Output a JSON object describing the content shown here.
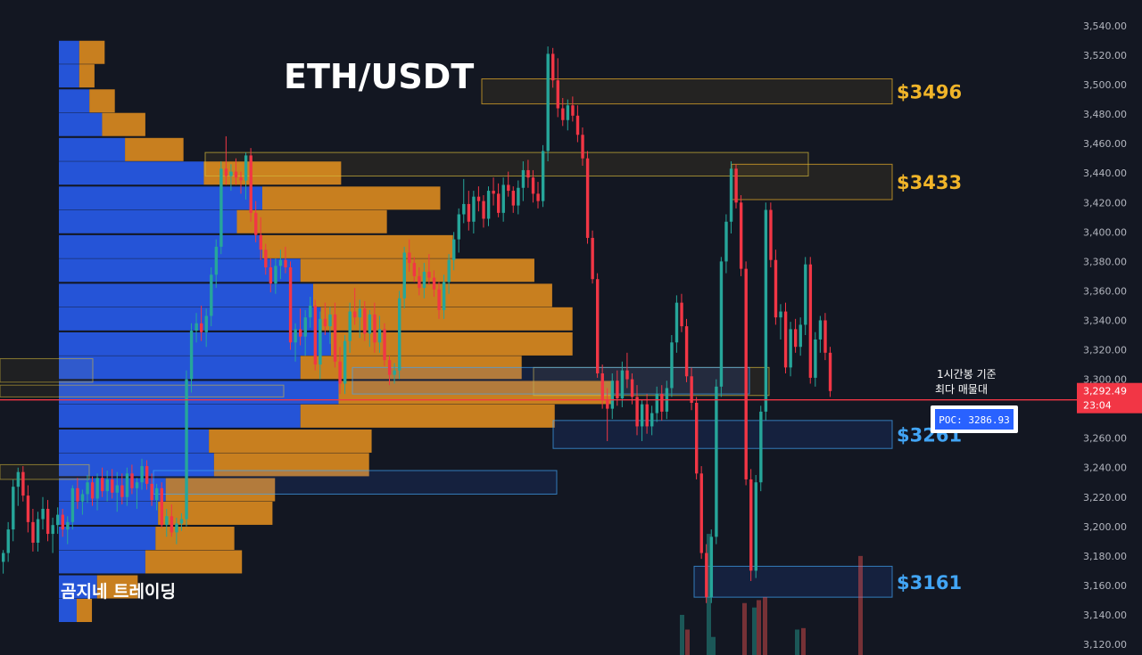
{
  "chart_data": {
    "type": "candlestick",
    "title": "ETH/USDT",
    "watermark": "곰지네 트레이딩",
    "y_axis": {
      "ticks": [
        "3,120.00",
        "3,140.00",
        "3,160.00",
        "3,180.00",
        "3,200.00",
        "3,220.00",
        "3,240.00",
        "3,260.00",
        "3,280.00",
        "3,300.00",
        "3,320.00",
        "3,340.00",
        "3,360.00",
        "3,380.00",
        "3,400.00",
        "3,420.00",
        "3,440.00",
        "3,460.00",
        "3,480.00",
        "3,500.00",
        "3,520.00",
        "3,540.00"
      ],
      "range": [
        3113,
        3555
      ]
    },
    "current_price": {
      "value": "3,292.49",
      "countdown": "23:04",
      "level": 3286,
      "color": "#f23645"
    },
    "annotation": {
      "line1": "1시간봉 기준",
      "line2": "최다 매물대"
    },
    "poc": {
      "label": "POC: 3286.93",
      "value": 3286.93
    },
    "zones": [
      {
        "label": "$3496",
        "low": 3487,
        "high": 3504,
        "color": "#f0b429",
        "kind": "resistance"
      },
      {
        "label": "$3433",
        "low": 3422,
        "high": 3446,
        "color": "#f0b429",
        "kind": "resistance"
      },
      {
        "label": "",
        "low": 3438,
        "high": 3454,
        "color": "#d4b83a",
        "kind": "resistance"
      },
      {
        "label": "",
        "low": 3289,
        "high": 3308,
        "color": "#d4b83a",
        "kind": "resistance"
      },
      {
        "label": "$3261",
        "low": 3253,
        "high": 3272,
        "color": "#42a5f5",
        "kind": "support"
      },
      {
        "label": "",
        "low": 3290,
        "high": 3308,
        "color": "#42a5f5",
        "kind": "support"
      },
      {
        "label": "",
        "low": 3222,
        "high": 3238,
        "color": "#42a5f5",
        "kind": "support"
      },
      {
        "label": "$3161",
        "low": 3152,
        "high": 3173,
        "color": "#42a5f5",
        "kind": "support"
      }
    ],
    "volume_profile": {
      "up_color": "#2962ff",
      "down_color": "#f0961e",
      "rows": [
        {
          "price": 3522,
          "up": 0.008,
          "down": 0.01
        },
        {
          "price": 3506,
          "up": 0.008,
          "down": 0.006
        },
        {
          "price": 3489,
          "up": 0.012,
          "down": 0.01
        },
        {
          "price": 3473,
          "up": 0.017,
          "down": 0.017
        },
        {
          "price": 3456,
          "up": 0.026,
          "down": 0.023
        },
        {
          "price": 3440,
          "up": 0.057,
          "down": 0.054
        },
        {
          "price": 3423,
          "up": 0.08,
          "down": 0.07
        },
        {
          "price": 3407,
          "up": 0.07,
          "down": 0.059
        },
        {
          "price": 3390,
          "up": 0.08,
          "down": 0.075
        },
        {
          "price": 3374,
          "up": 0.095,
          "down": 0.092
        },
        {
          "price": 3357,
          "up": 0.1,
          "down": 0.094
        },
        {
          "price": 3341,
          "up": 0.103,
          "down": 0.099
        },
        {
          "price": 3324,
          "up": 0.107,
          "down": 0.095
        },
        {
          "price": 3308,
          "up": 0.095,
          "down": 0.087
        },
        {
          "price": 3291,
          "up": 0.11,
          "down": 0.108
        },
        {
          "price": 3275,
          "up": 0.095,
          "down": 0.1
        },
        {
          "price": 3258,
          "up": 0.059,
          "down": 0.064
        },
        {
          "price": 3242,
          "up": 0.061,
          "down": 0.061
        },
        {
          "price": 3225,
          "up": 0.042,
          "down": 0.043
        },
        {
          "price": 3209,
          "up": 0.039,
          "down": 0.045
        },
        {
          "price": 3192,
          "up": 0.038,
          "down": 0.031
        },
        {
          "price": 3176,
          "up": 0.034,
          "down": 0.038
        },
        {
          "price": 3159,
          "up": 0.015,
          "down": 0.016
        },
        {
          "price": 3143,
          "up": 0.007,
          "down": 0.006
        }
      ]
    },
    "candles": [
      {
        "o": 3176,
        "h": 3184,
        "l": 3168,
        "c": 3182
      },
      {
        "o": 3182,
        "h": 3203,
        "l": 3176,
        "c": 3198
      },
      {
        "o": 3198,
        "h": 3232,
        "l": 3190,
        "c": 3227
      },
      {
        "o": 3227,
        "h": 3240,
        "l": 3214,
        "c": 3237
      },
      {
        "o": 3237,
        "h": 3241,
        "l": 3217,
        "c": 3221
      },
      {
        "o": 3221,
        "h": 3228,
        "l": 3196,
        "c": 3203
      },
      {
        "o": 3203,
        "h": 3212,
        "l": 3183,
        "c": 3189
      },
      {
        "o": 3189,
        "h": 3210,
        "l": 3183,
        "c": 3205
      },
      {
        "o": 3205,
        "h": 3220,
        "l": 3198,
        "c": 3212
      },
      {
        "o": 3212,
        "h": 3218,
        "l": 3190,
        "c": 3195
      },
      {
        "o": 3195,
        "h": 3206,
        "l": 3182,
        "c": 3201
      },
      {
        "o": 3201,
        "h": 3213,
        "l": 3195,
        "c": 3208
      },
      {
        "o": 3208,
        "h": 3212,
        "l": 3193,
        "c": 3198
      },
      {
        "o": 3198,
        "h": 3207,
        "l": 3188,
        "c": 3203
      },
      {
        "o": 3203,
        "h": 3228,
        "l": 3198,
        "c": 3226
      },
      {
        "o": 3226,
        "h": 3233,
        "l": 3212,
        "c": 3217
      },
      {
        "o": 3217,
        "h": 3225,
        "l": 3208,
        "c": 3222
      },
      {
        "o": 3222,
        "h": 3235,
        "l": 3216,
        "c": 3230
      },
      {
        "o": 3230,
        "h": 3234,
        "l": 3214,
        "c": 3219
      },
      {
        "o": 3219,
        "h": 3236,
        "l": 3211,
        "c": 3233
      },
      {
        "o": 3233,
        "h": 3240,
        "l": 3220,
        "c": 3224
      },
      {
        "o": 3224,
        "h": 3238,
        "l": 3217,
        "c": 3232
      },
      {
        "o": 3232,
        "h": 3239,
        "l": 3219,
        "c": 3223
      },
      {
        "o": 3223,
        "h": 3237,
        "l": 3210,
        "c": 3228
      },
      {
        "o": 3228,
        "h": 3236,
        "l": 3215,
        "c": 3220
      },
      {
        "o": 3220,
        "h": 3240,
        "l": 3214,
        "c": 3236
      },
      {
        "o": 3236,
        "h": 3242,
        "l": 3222,
        "c": 3226
      },
      {
        "o": 3226,
        "h": 3233,
        "l": 3212,
        "c": 3230
      },
      {
        "o": 3230,
        "h": 3246,
        "l": 3225,
        "c": 3241
      },
      {
        "o": 3241,
        "h": 3245,
        "l": 3225,
        "c": 3229
      },
      {
        "o": 3229,
        "h": 3236,
        "l": 3214,
        "c": 3218
      },
      {
        "o": 3218,
        "h": 3229,
        "l": 3211,
        "c": 3226
      },
      {
        "o": 3226,
        "h": 3230,
        "l": 3199,
        "c": 3201
      },
      {
        "o": 3201,
        "h": 3212,
        "l": 3193,
        "c": 3207
      },
      {
        "o": 3207,
        "h": 3215,
        "l": 3193,
        "c": 3196
      },
      {
        "o": 3196,
        "h": 3206,
        "l": 3188,
        "c": 3202
      },
      {
        "o": 3202,
        "h": 3209,
        "l": 3197,
        "c": 3205
      },
      {
        "o": 3205,
        "h": 3306,
        "l": 3200,
        "c": 3300
      },
      {
        "o": 3300,
        "h": 3338,
        "l": 3291,
        "c": 3333
      },
      {
        "o": 3333,
        "h": 3345,
        "l": 3325,
        "c": 3338
      },
      {
        "o": 3338,
        "h": 3350,
        "l": 3326,
        "c": 3332
      },
      {
        "o": 3332,
        "h": 3348,
        "l": 3322,
        "c": 3343
      },
      {
        "o": 3343,
        "h": 3376,
        "l": 3336,
        "c": 3371
      },
      {
        "o": 3371,
        "h": 3395,
        "l": 3362,
        "c": 3390
      },
      {
        "o": 3390,
        "h": 3448,
        "l": 3385,
        "c": 3443
      },
      {
        "o": 3443,
        "h": 3465,
        "l": 3432,
        "c": 3438
      },
      {
        "o": 3438,
        "h": 3446,
        "l": 3428,
        "c": 3441
      },
      {
        "o": 3441,
        "h": 3450,
        "l": 3432,
        "c": 3437
      },
      {
        "o": 3437,
        "h": 3441,
        "l": 3426,
        "c": 3435
      },
      {
        "o": 3435,
        "h": 3454,
        "l": 3422,
        "c": 3452
      },
      {
        "o": 3452,
        "h": 3457,
        "l": 3407,
        "c": 3413
      },
      {
        "o": 3413,
        "h": 3421,
        "l": 3393,
        "c": 3398
      },
      {
        "o": 3398,
        "h": 3410,
        "l": 3381,
        "c": 3388
      },
      {
        "o": 3388,
        "h": 3392,
        "l": 3371,
        "c": 3376
      },
      {
        "o": 3376,
        "h": 3382,
        "l": 3359,
        "c": 3365
      },
      {
        "o": 3365,
        "h": 3382,
        "l": 3358,
        "c": 3377
      },
      {
        "o": 3377,
        "h": 3388,
        "l": 3368,
        "c": 3381
      },
      {
        "o": 3381,
        "h": 3390,
        "l": 3372,
        "c": 3376
      },
      {
        "o": 3376,
        "h": 3380,
        "l": 3320,
        "c": 3325
      },
      {
        "o": 3325,
        "h": 3338,
        "l": 3312,
        "c": 3334
      },
      {
        "o": 3334,
        "h": 3348,
        "l": 3323,
        "c": 3329
      },
      {
        "o": 3329,
        "h": 3347,
        "l": 3316,
        "c": 3342
      },
      {
        "o": 3342,
        "h": 3356,
        "l": 3335,
        "c": 3350
      },
      {
        "o": 3350,
        "h": 3354,
        "l": 3306,
        "c": 3310
      },
      {
        "o": 3310,
        "h": 3346,
        "l": 3300,
        "c": 3341
      },
      {
        "o": 3341,
        "h": 3352,
        "l": 3330,
        "c": 3336
      },
      {
        "o": 3336,
        "h": 3349,
        "l": 3324,
        "c": 3344
      },
      {
        "o": 3344,
        "h": 3352,
        "l": 3308,
        "c": 3312
      },
      {
        "o": 3312,
        "h": 3322,
        "l": 3290,
        "c": 3297
      },
      {
        "o": 3297,
        "h": 3330,
        "l": 3290,
        "c": 3326
      },
      {
        "o": 3326,
        "h": 3352,
        "l": 3318,
        "c": 3346
      },
      {
        "o": 3346,
        "h": 3362,
        "l": 3337,
        "c": 3342
      },
      {
        "o": 3342,
        "h": 3354,
        "l": 3328,
        "c": 3348
      },
      {
        "o": 3348,
        "h": 3353,
        "l": 3326,
        "c": 3331
      },
      {
        "o": 3331,
        "h": 3347,
        "l": 3322,
        "c": 3344
      },
      {
        "o": 3344,
        "h": 3352,
        "l": 3318,
        "c": 3325
      },
      {
        "o": 3325,
        "h": 3343,
        "l": 3318,
        "c": 3334
      },
      {
        "o": 3334,
        "h": 3338,
        "l": 3309,
        "c": 3313
      },
      {
        "o": 3313,
        "h": 3316,
        "l": 3296,
        "c": 3303
      },
      {
        "o": 3303,
        "h": 3311,
        "l": 3297,
        "c": 3306
      },
      {
        "o": 3306,
        "h": 3360,
        "l": 3300,
        "c": 3355
      },
      {
        "o": 3355,
        "h": 3390,
        "l": 3348,
        "c": 3386
      },
      {
        "o": 3386,
        "h": 3395,
        "l": 3373,
        "c": 3379
      },
      {
        "o": 3379,
        "h": 3383,
        "l": 3366,
        "c": 3370
      },
      {
        "o": 3370,
        "h": 3376,
        "l": 3357,
        "c": 3362
      },
      {
        "o": 3362,
        "h": 3379,
        "l": 3355,
        "c": 3373
      },
      {
        "o": 3373,
        "h": 3385,
        "l": 3364,
        "c": 3369
      },
      {
        "o": 3369,
        "h": 3374,
        "l": 3356,
        "c": 3361
      },
      {
        "o": 3361,
        "h": 3366,
        "l": 3341,
        "c": 3347
      },
      {
        "o": 3347,
        "h": 3371,
        "l": 3341,
        "c": 3366
      },
      {
        "o": 3366,
        "h": 3385,
        "l": 3358,
        "c": 3381
      },
      {
        "o": 3381,
        "h": 3400,
        "l": 3374,
        "c": 3395
      },
      {
        "o": 3395,
        "h": 3416,
        "l": 3386,
        "c": 3412
      },
      {
        "o": 3412,
        "h": 3436,
        "l": 3406,
        "c": 3419
      },
      {
        "o": 3419,
        "h": 3428,
        "l": 3401,
        "c": 3407
      },
      {
        "o": 3407,
        "h": 3428,
        "l": 3399,
        "c": 3424
      },
      {
        "o": 3424,
        "h": 3431,
        "l": 3414,
        "c": 3421
      },
      {
        "o": 3421,
        "h": 3425,
        "l": 3403,
        "c": 3409
      },
      {
        "o": 3409,
        "h": 3431,
        "l": 3404,
        "c": 3428
      },
      {
        "o": 3428,
        "h": 3437,
        "l": 3418,
        "c": 3426
      },
      {
        "o": 3426,
        "h": 3433,
        "l": 3410,
        "c": 3413
      },
      {
        "o": 3413,
        "h": 3437,
        "l": 3407,
        "c": 3432
      },
      {
        "o": 3432,
        "h": 3441,
        "l": 3424,
        "c": 3428
      },
      {
        "o": 3428,
        "h": 3431,
        "l": 3413,
        "c": 3418
      },
      {
        "o": 3418,
        "h": 3435,
        "l": 3412,
        "c": 3430
      },
      {
        "o": 3430,
        "h": 3448,
        "l": 3421,
        "c": 3442
      },
      {
        "o": 3442,
        "h": 3449,
        "l": 3430,
        "c": 3437
      },
      {
        "o": 3437,
        "h": 3442,
        "l": 3420,
        "c": 3426
      },
      {
        "o": 3426,
        "h": 3434,
        "l": 3416,
        "c": 3421
      },
      {
        "o": 3421,
        "h": 3459,
        "l": 3417,
        "c": 3455
      },
      {
        "o": 3455,
        "h": 3526,
        "l": 3448,
        "c": 3521
      },
      {
        "o": 3521,
        "h": 3525,
        "l": 3498,
        "c": 3503
      },
      {
        "o": 3503,
        "h": 3518,
        "l": 3478,
        "c": 3484
      },
      {
        "o": 3484,
        "h": 3491,
        "l": 3472,
        "c": 3476
      },
      {
        "o": 3476,
        "h": 3490,
        "l": 3469,
        "c": 3486
      },
      {
        "o": 3486,
        "h": 3492,
        "l": 3475,
        "c": 3479
      },
      {
        "o": 3479,
        "h": 3486,
        "l": 3461,
        "c": 3466
      },
      {
        "o": 3466,
        "h": 3471,
        "l": 3445,
        "c": 3450
      },
      {
        "o": 3450,
        "h": 3455,
        "l": 3392,
        "c": 3396
      },
      {
        "o": 3396,
        "h": 3401,
        "l": 3365,
        "c": 3368
      },
      {
        "o": 3368,
        "h": 3372,
        "l": 3301,
        "c": 3304
      },
      {
        "o": 3304,
        "h": 3310,
        "l": 3280,
        "c": 3286
      },
      {
        "o": 3286,
        "h": 3294,
        "l": 3258,
        "c": 3280
      },
      {
        "o": 3280,
        "h": 3304,
        "l": 3273,
        "c": 3299
      },
      {
        "o": 3299,
        "h": 3306,
        "l": 3282,
        "c": 3287
      },
      {
        "o": 3287,
        "h": 3312,
        "l": 3281,
        "c": 3306
      },
      {
        "o": 3306,
        "h": 3318,
        "l": 3294,
        "c": 3300
      },
      {
        "o": 3300,
        "h": 3304,
        "l": 3283,
        "c": 3288
      },
      {
        "o": 3288,
        "h": 3296,
        "l": 3262,
        "c": 3268
      },
      {
        "o": 3268,
        "h": 3286,
        "l": 3258,
        "c": 3283
      },
      {
        "o": 3283,
        "h": 3290,
        "l": 3263,
        "c": 3268
      },
      {
        "o": 3268,
        "h": 3282,
        "l": 3262,
        "c": 3277
      },
      {
        "o": 3277,
        "h": 3295,
        "l": 3271,
        "c": 3290
      },
      {
        "o": 3290,
        "h": 3296,
        "l": 3272,
        "c": 3278
      },
      {
        "o": 3278,
        "h": 3299,
        "l": 3273,
        "c": 3294
      },
      {
        "o": 3294,
        "h": 3330,
        "l": 3288,
        "c": 3325
      },
      {
        "o": 3325,
        "h": 3357,
        "l": 3318,
        "c": 3352
      },
      {
        "o": 3352,
        "h": 3358,
        "l": 3332,
        "c": 3336
      },
      {
        "o": 3336,
        "h": 3341,
        "l": 3298,
        "c": 3302
      },
      {
        "o": 3302,
        "h": 3308,
        "l": 3279,
        "c": 3284
      },
      {
        "o": 3284,
        "h": 3288,
        "l": 3232,
        "c": 3236
      },
      {
        "o": 3236,
        "h": 3241,
        "l": 3178,
        "c": 3182
      },
      {
        "o": 3182,
        "h": 3188,
        "l": 3148,
        "c": 3152
      },
      {
        "o": 3152,
        "h": 3198,
        "l": 3148,
        "c": 3193
      },
      {
        "o": 3193,
        "h": 3300,
        "l": 3188,
        "c": 3295
      },
      {
        "o": 3295,
        "h": 3383,
        "l": 3288,
        "c": 3380
      },
      {
        "o": 3380,
        "h": 3412,
        "l": 3372,
        "c": 3407
      },
      {
        "o": 3407,
        "h": 3448,
        "l": 3399,
        "c": 3443
      },
      {
        "o": 3443,
        "h": 3446,
        "l": 3416,
        "c": 3420
      },
      {
        "o": 3420,
        "h": 3425,
        "l": 3370,
        "c": 3375
      },
      {
        "o": 3375,
        "h": 3380,
        "l": 3228,
        "c": 3232
      },
      {
        "o": 3232,
        "h": 3239,
        "l": 3163,
        "c": 3170
      },
      {
        "o": 3170,
        "h": 3235,
        "l": 3165,
        "c": 3230
      },
      {
        "o": 3230,
        "h": 3282,
        "l": 3224,
        "c": 3278
      },
      {
        "o": 3278,
        "h": 3420,
        "l": 3272,
        "c": 3415
      },
      {
        "o": 3415,
        "h": 3420,
        "l": 3376,
        "c": 3381
      },
      {
        "o": 3381,
        "h": 3388,
        "l": 3337,
        "c": 3342
      },
      {
        "o": 3342,
        "h": 3351,
        "l": 3327,
        "c": 3346
      },
      {
        "o": 3346,
        "h": 3352,
        "l": 3304,
        "c": 3308
      },
      {
        "o": 3308,
        "h": 3339,
        "l": 3302,
        "c": 3334
      },
      {
        "o": 3334,
        "h": 3341,
        "l": 3318,
        "c": 3322
      },
      {
        "o": 3322,
        "h": 3342,
        "l": 3316,
        "c": 3337
      },
      {
        "o": 3337,
        "h": 3383,
        "l": 3330,
        "c": 3378
      },
      {
        "o": 3378,
        "h": 3383,
        "l": 3297,
        "c": 3301
      },
      {
        "o": 3301,
        "h": 3332,
        "l": 3295,
        "c": 3327
      },
      {
        "o": 3327,
        "h": 3343,
        "l": 3318,
        "c": 3340
      },
      {
        "o": 3340,
        "h": 3345,
        "l": 3313,
        "c": 3318
      },
      {
        "o": 3318,
        "h": 3322,
        "l": 3288,
        "c": 3292
      }
    ]
  }
}
